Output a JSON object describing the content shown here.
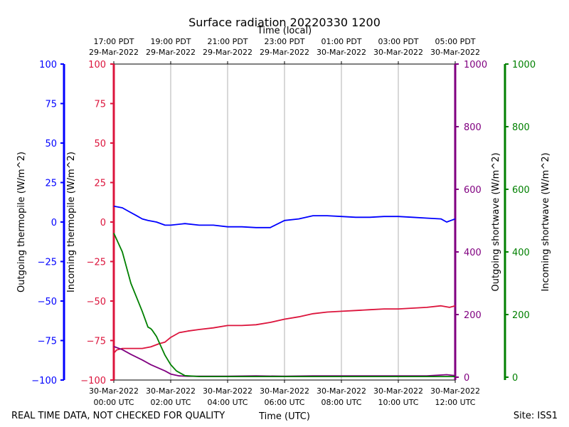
{
  "chart_data": {
    "type": "line",
    "title": "Surface radiation 20220330 1200",
    "top_axis_label": "Time (local)",
    "xlabel": "Time (UTC)",
    "footer_left": "REAL TIME DATA, NOT CHECKED FOR QUALITY",
    "footer_right": "Site: ISS1",
    "x_range_hours": [
      0,
      12
    ],
    "x_ticks_utc": [
      {
        "hour": 0,
        "line1": "30-Mar-2022",
        "line2": "00:00 UTC"
      },
      {
        "hour": 2,
        "line1": "30-Mar-2022",
        "line2": "02:00 UTC"
      },
      {
        "hour": 4,
        "line1": "30-Mar-2022",
        "line2": "04:00 UTC"
      },
      {
        "hour": 6,
        "line1": "30-Mar-2022",
        "line2": "06:00 UTC"
      },
      {
        "hour": 8,
        "line1": "30-Mar-2022",
        "line2": "08:00 UTC"
      },
      {
        "hour": 10,
        "line1": "30-Mar-2022",
        "line2": "10:00 UTC"
      },
      {
        "hour": 12,
        "line1": "30-Mar-2022",
        "line2": "12:00 UTC"
      }
    ],
    "x_ticks_local": [
      {
        "hour": 0,
        "line1": "17:00 PDT",
        "line2": "29-Mar-2022"
      },
      {
        "hour": 2,
        "line1": "19:00 PDT",
        "line2": "29-Mar-2022"
      },
      {
        "hour": 4,
        "line1": "21:00 PDT",
        "line2": "29-Mar-2022"
      },
      {
        "hour": 6,
        "line1": "23:00 PDT",
        "line2": "29-Mar-2022"
      },
      {
        "hour": 8,
        "line1": "01:00 PDT",
        "line2": "30-Mar-2022"
      },
      {
        "hour": 10,
        "line1": "03:00 PDT",
        "line2": "30-Mar-2022"
      },
      {
        "hour": 12,
        "line1": "05:00 PDT",
        "line2": "30-Mar-2022"
      }
    ],
    "axes": {
      "outgoing_thermopile": {
        "label": "Outgoing thermopile (W/m^2)",
        "color": "#0000ff",
        "ylim": [
          -100,
          100
        ],
        "ticks": [
          -100,
          -75,
          -50,
          -25,
          0,
          25,
          50,
          75,
          100
        ]
      },
      "incoming_thermopile": {
        "label": "Incoming thermopile (W/m^2)",
        "color": "#dc143c",
        "ylim": [
          -100,
          100
        ],
        "ticks": [
          -100,
          -75,
          -50,
          -25,
          0,
          25,
          50,
          75,
          100
        ]
      },
      "outgoing_shortwave": {
        "label": "Outgoing shortwave (W/m^2)",
        "color": "#800080",
        "ylim": [
          0,
          1000
        ],
        "ticks": [
          0,
          200,
          400,
          600,
          800,
          1000
        ]
      },
      "incoming_shortwave": {
        "label": "Incoming shortwave (W/m^2)",
        "color": "#008000",
        "ylim": [
          0,
          1000
        ],
        "ticks": [
          0,
          200,
          400,
          600,
          800,
          1000
        ]
      }
    },
    "series": [
      {
        "name": "Outgoing thermopile",
        "axis": "outgoing_thermopile",
        "color": "#0000ff",
        "x": [
          0,
          0.3,
          0.5,
          0.8,
          1.0,
          1.2,
          1.5,
          1.8,
          2.0,
          2.5,
          3.0,
          3.5,
          4.0,
          4.5,
          5.0,
          5.5,
          6.0,
          6.5,
          7.0,
          7.5,
          8.0,
          8.5,
          9.0,
          9.5,
          10.0,
          10.5,
          11.0,
          11.5,
          11.7,
          12.0
        ],
        "y": [
          10,
          9,
          7,
          4,
          2,
          1,
          0,
          -2,
          -2,
          -1,
          -2,
          -2,
          -3,
          -3,
          -3.5,
          -3.5,
          1,
          2,
          4,
          4,
          3.5,
          3,
          3,
          3.5,
          3.5,
          3,
          2.5,
          2,
          0,
          2
        ]
      },
      {
        "name": "Incoming thermopile",
        "axis": "incoming_thermopile",
        "color": "#dc143c",
        "x": [
          0,
          0.1,
          0.3,
          0.6,
          1.0,
          1.3,
          1.6,
          1.8,
          2.0,
          2.3,
          2.6,
          3.0,
          3.5,
          4.0,
          4.5,
          5.0,
          5.5,
          6.0,
          6.5,
          7.0,
          7.5,
          8.0,
          8.5,
          9.0,
          9.5,
          10.0,
          10.5,
          11.0,
          11.5,
          11.8,
          12.0
        ],
        "y": [
          -83,
          -81,
          -80,
          -80,
          -80,
          -79,
          -77,
          -76,
          -73,
          -70,
          -69,
          -68,
          -67,
          -65.5,
          -65.5,
          -65,
          -63.5,
          -61.5,
          -60,
          -58,
          -57,
          -56.5,
          -56,
          -55.5,
          -55,
          -55,
          -54.5,
          -54,
          -53,
          -54,
          -53
        ]
      },
      {
        "name": "Outgoing shortwave",
        "axis": "outgoing_shortwave",
        "color": "#800080",
        "x": [
          0,
          0.3,
          0.6,
          1.0,
          1.3,
          1.6,
          1.8,
          2.0,
          2.3,
          2.6,
          3.0,
          4.0,
          5.0,
          6.0,
          7.0,
          8.0,
          9.0,
          10.0,
          11.0,
          11.7,
          12.0
        ],
        "y": [
          98,
          88,
          73,
          55,
          40,
          28,
          20,
          10,
          4,
          3,
          3,
          3,
          4,
          3,
          4,
          4,
          4,
          4,
          4,
          8,
          5
        ]
      },
      {
        "name": "Incoming shortwave",
        "axis": "incoming_shortwave",
        "color": "#008000",
        "x": [
          0,
          0.3,
          0.6,
          1.0,
          1.2,
          1.3,
          1.35,
          1.5,
          1.6,
          1.8,
          2.0,
          2.2,
          2.5,
          3.0,
          4.0,
          5.0,
          6.0,
          7.0,
          8.0,
          9.0,
          10.0,
          11.0,
          12.0
        ],
        "y": [
          460,
          400,
          300,
          210,
          160,
          155,
          150,
          130,
          110,
          70,
          40,
          20,
          5,
          2,
          2,
          2,
          2,
          2,
          2,
          2,
          2,
          2,
          2
        ]
      }
    ]
  }
}
